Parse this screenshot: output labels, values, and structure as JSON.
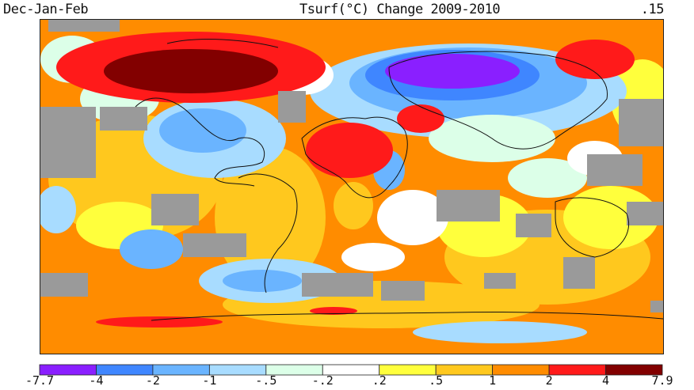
{
  "header": {
    "season": "Dec-Jan-Feb",
    "title": "Tsurf(°C) Change 2009-2010",
    "global_mean": ".15"
  },
  "colors": {
    "no_data": "#9a9a9a",
    "coastline": "#111111"
  },
  "legend": {
    "bins": [
      {
        "label": "-7.7",
        "color": "#8a1fff"
      },
      {
        "label": "-4",
        "color": "#3f86ff"
      },
      {
        "label": "-2",
        "color": "#6ab4ff"
      },
      {
        "label": "-1",
        "color": "#a8dcff"
      },
      {
        "label": "-.5",
        "color": "#dcffe8"
      },
      {
        "label": "-.2",
        "color": "#ffffff"
      },
      {
        "label": ".2",
        "color": "#ffff3c"
      },
      {
        "label": ".5",
        "color": "#ffc81e"
      },
      {
        "label": "1",
        "color": "#ff8c00"
      },
      {
        "label": "2",
        "color": "#ff1a1a"
      },
      {
        "label": "4",
        "color": "#820000"
      }
    ],
    "max_label": "7.9"
  }
}
